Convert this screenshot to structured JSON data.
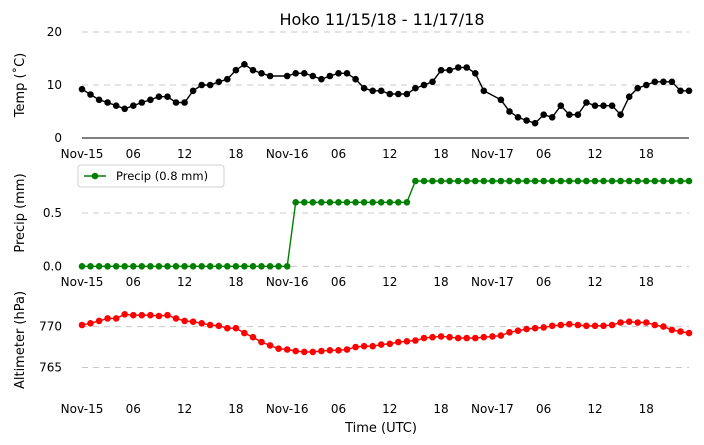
{
  "chart_data": {
    "type": "line",
    "title": "Hoko 11/15/18 - 11/17/18",
    "xlabel": "Time (UTC)",
    "x_tick_labels": [
      "Nov-15",
      "06",
      "12",
      "18",
      "Nov-16",
      "06",
      "12",
      "18",
      "Nov-17",
      "06",
      "12",
      "18"
    ],
    "x_tick_hours": [
      0,
      6,
      12,
      18,
      24,
      30,
      36,
      42,
      48,
      54,
      60,
      66
    ],
    "x_range_hours": [
      0,
      71
    ],
    "panels": [
      {
        "ylabel": "Temp (˚C)",
        "ylim": [
          0,
          20
        ],
        "yticks": [
          0,
          10,
          20
        ],
        "grid": true,
        "series": [
          {
            "color": "#000000",
            "x": [
              0,
              1,
              2,
              3,
              4,
              5,
              6,
              7,
              8,
              9,
              10,
              11,
              12,
              13,
              14,
              15,
              16,
              17,
              18,
              19,
              20,
              21,
              22,
              24,
              25,
              26,
              27,
              28,
              29,
              30,
              31,
              32,
              33,
              34,
              35,
              36,
              37,
              38,
              39,
              40,
              41,
              42,
              43,
              44,
              45,
              46,
              47,
              49,
              50,
              51,
              52,
              53,
              54,
              55,
              56,
              57,
              58,
              59,
              60,
              61,
              62,
              63,
              64,
              65,
              66,
              67,
              68,
              69,
              70,
              71
            ],
            "values": [
              9.2,
              8.2,
              7.2,
              6.7,
              6.1,
              5.5,
              6.1,
              6.7,
              7.2,
              7.8,
              7.8,
              6.7,
              6.7,
              8.9,
              10.0,
              10.0,
              10.6,
              11.1,
              12.8,
              13.9,
              12.8,
              12.2,
              11.7,
              11.7,
              12.2,
              12.2,
              11.7,
              11.1,
              11.7,
              12.2,
              12.2,
              11.1,
              9.4,
              8.9,
              8.9,
              8.3,
              8.3,
              8.3,
              9.4,
              10.0,
              10.6,
              12.8,
              12.8,
              13.3,
              13.3,
              12.2,
              8.9,
              7.2,
              5.0,
              3.9,
              3.3,
              2.8,
              4.4,
              3.9,
              6.1,
              4.4,
              4.4,
              6.7,
              6.1,
              6.1,
              6.1,
              4.4,
              7.8,
              9.4,
              10.0,
              10.6,
              10.6,
              10.6,
              8.9,
              8.9
            ]
          }
        ]
      },
      {
        "ylabel": "Precip (mm)",
        "ylim": [
          -0.1,
          0.95
        ],
        "yticks": [
          0.0,
          0.5
        ],
        "ytick_labels": [
          "0.0",
          "0.5"
        ],
        "grid": true,
        "legend": {
          "label": "Precip (0.8 mm)",
          "loc": "top-left"
        },
        "series": [
          {
            "name": "Precip (0.8 mm)",
            "color": "#008000",
            "x": [
              0,
              1,
              2,
              3,
              4,
              5,
              6,
              7,
              8,
              9,
              10,
              11,
              12,
              13,
              14,
              15,
              16,
              17,
              18,
              19,
              20,
              21,
              22,
              23,
              24,
              25,
              26,
              27,
              28,
              29,
              30,
              31,
              32,
              33,
              34,
              35,
              36,
              37,
              38,
              39,
              40,
              41,
              42,
              43,
              44,
              45,
              46,
              47,
              48,
              49,
              50,
              51,
              52,
              53,
              54,
              55,
              56,
              57,
              58,
              59,
              60,
              61,
              62,
              63,
              64,
              65,
              66,
              67,
              68,
              69,
              70,
              71
            ],
            "values": [
              0,
              0,
              0,
              0,
              0,
              0,
              0,
              0,
              0,
              0,
              0,
              0,
              0,
              0,
              0,
              0,
              0,
              0,
              0,
              0,
              0,
              0,
              0,
              0,
              0,
              0.6,
              0.6,
              0.6,
              0.6,
              0.6,
              0.6,
              0.6,
              0.6,
              0.6,
              0.6,
              0.6,
              0.6,
              0.6,
              0.6,
              0.8,
              0.8,
              0.8,
              0.8,
              0.8,
              0.8,
              0.8,
              0.8,
              0.8,
              0.8,
              0.8,
              0.8,
              0.8,
              0.8,
              0.8,
              0.8,
              0.8,
              0.8,
              0.8,
              0.8,
              0.8,
              0.8,
              0.8,
              0.8,
              0.8,
              0.8,
              0.8,
              0.8,
              0.8,
              0.8,
              0.8,
              0.8,
              0.8
            ]
          }
        ]
      },
      {
        "ylabel": "Altimeter (hPa)",
        "ylim": [
          762,
          773.5
        ],
        "yticks": [
          765,
          770
        ],
        "grid": true,
        "series": [
          {
            "color": "#ff0000",
            "x": [
              0,
              1,
              2,
              3,
              4,
              5,
              6,
              7,
              8,
              9,
              10,
              11,
              12,
              13,
              14,
              15,
              16,
              17,
              18,
              19,
              20,
              21,
              22,
              23,
              24,
              25,
              26,
              27,
              28,
              29,
              30,
              31,
              32,
              33,
              34,
              35,
              36,
              37,
              38,
              39,
              40,
              41,
              42,
              43,
              44,
              45,
              46,
              47,
              48,
              49,
              50,
              51,
              52,
              53,
              54,
              55,
              56,
              57,
              58,
              59,
              60,
              61,
              62,
              63,
              64,
              65,
              66,
              67,
              68,
              69,
              70,
              71
            ],
            "values": [
              770.2,
              770.4,
              770.7,
              771.0,
              771.0,
              771.5,
              771.4,
              771.4,
              771.4,
              771.3,
              771.4,
              771.0,
              770.7,
              770.6,
              770.4,
              770.2,
              770.1,
              769.8,
              769.8,
              769.2,
              768.7,
              768.1,
              767.7,
              767.3,
              767.2,
              767.0,
              766.9,
              766.9,
              767.0,
              767.1,
              767.1,
              767.2,
              767.5,
              767.6,
              767.6,
              767.8,
              767.9,
              768.1,
              768.2,
              768.3,
              768.6,
              768.7,
              768.8,
              768.7,
              768.6,
              768.6,
              768.6,
              768.7,
              768.8,
              768.9,
              769.3,
              769.5,
              769.7,
              769.8,
              769.9,
              770.1,
              770.2,
              770.3,
              770.2,
              770.1,
              770.1,
              770.1,
              770.2,
              770.5,
              770.6,
              770.5,
              770.5,
              770.2,
              770.0,
              769.6,
              769.4,
              769.2
            ]
          }
        ]
      }
    ]
  }
}
